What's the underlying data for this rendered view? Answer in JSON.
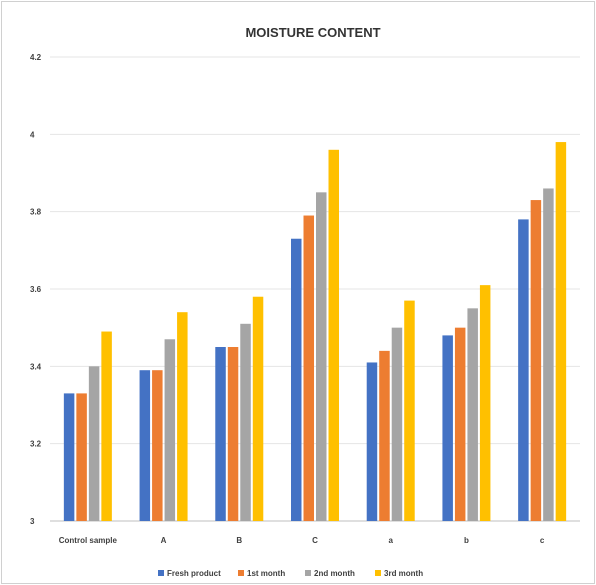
{
  "chart_data": {
    "type": "bar",
    "title": "MOISTURE CONTENT",
    "xlabel": "",
    "ylabel": "",
    "ylim": [
      3,
      4.2
    ],
    "yticks": [
      "4.2",
      "4",
      "3.8",
      "3.6",
      "3.4",
      "3.2",
      "3"
    ],
    "grid": true,
    "legend_position": "bottom",
    "categories": [
      "Control sample",
      "A",
      "B",
      "C",
      "a",
      "b",
      "c"
    ],
    "series": [
      {
        "name": "Fresh product",
        "color": "#4472C4",
        "values": [
          3.33,
          3.39,
          3.45,
          3.73,
          3.41,
          3.48,
          3.78
        ]
      },
      {
        "name": "1st month",
        "color": "#ED7D31",
        "values": [
          3.33,
          3.39,
          3.45,
          3.79,
          3.44,
          3.5,
          3.83
        ]
      },
      {
        "name": "2nd month",
        "color": "#A5A5A5",
        "values": [
          3.4,
          3.47,
          3.51,
          3.85,
          3.5,
          3.55,
          3.86
        ]
      },
      {
        "name": "3rd month",
        "color": "#FFC000",
        "values": [
          3.49,
          3.54,
          3.58,
          3.96,
          3.57,
          3.61,
          3.98
        ]
      }
    ]
  }
}
